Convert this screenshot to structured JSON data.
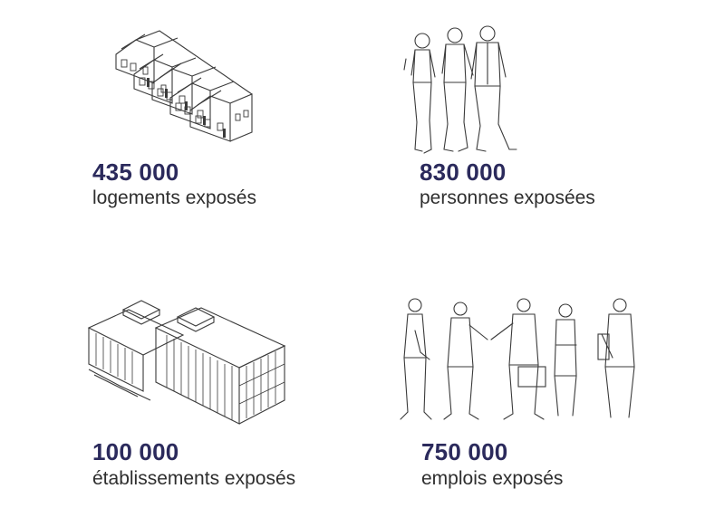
{
  "colors": {
    "number": "#2b2a5c",
    "label": "#2e2e2e",
    "line": "#3a3a3a"
  },
  "stats": [
    {
      "number": "435 000",
      "label": "logements exposés",
      "icon": "row-houses-icon"
    },
    {
      "number": "830 000",
      "label": "personnes exposées",
      "icon": "walking-people-icon"
    },
    {
      "number": "100 000",
      "label": "établissements exposés",
      "icon": "office-building-icon"
    },
    {
      "number": "750 000",
      "label": "emplois exposés",
      "icon": "business-people-icon"
    }
  ]
}
